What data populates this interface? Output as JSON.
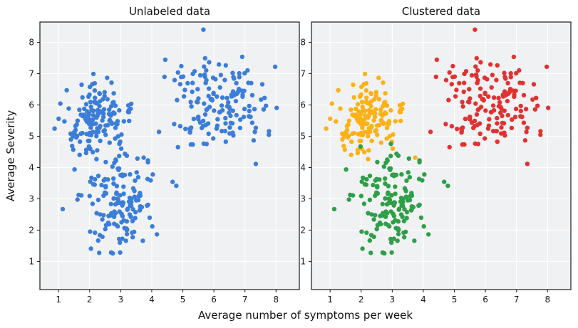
{
  "figure": {
    "background": "#ffffff",
    "plot_background": "#f0f1f2",
    "grid_color": "#ffffff",
    "spine_color": "#1a1a1a",
    "tick_color": "#1a1a1a"
  },
  "chart_data": {
    "type": "scatter",
    "xlabel": "Average number of symptoms per week",
    "ylabel": "Average Severity",
    "xlim": [
      0.4,
      8.75
    ],
    "ylim": [
      0.1,
      8.65
    ],
    "xticks": [
      1,
      2,
      3,
      4,
      5,
      6,
      7,
      8
    ],
    "yticks": [
      1,
      2,
      3,
      4,
      5,
      6,
      7,
      8
    ],
    "marker_radius": 3.2,
    "grid": true,
    "legend": "none",
    "panels": [
      {
        "id": "unlabeled",
        "title": "Unlabeled data",
        "color_mode": "single",
        "point_color": "#3b7dd8"
      },
      {
        "id": "clustered",
        "title": "Clustered data",
        "color_mode": "by-cluster"
      }
    ],
    "clusters": [
      {
        "label": "cluster-yellow-upper-left",
        "color": "#fbb117",
        "n": 150,
        "center": [
          2.15,
          5.5
        ],
        "std": [
          0.55,
          0.62
        ]
      },
      {
        "label": "cluster-green-lower-middle",
        "color": "#2f9e48",
        "n": 150,
        "center": [
          3.05,
          3.05
        ],
        "std": [
          0.62,
          0.78
        ]
      },
      {
        "label": "cluster-red-upper-right",
        "color": "#e03232",
        "n": 155,
        "center": [
          6.15,
          6.0
        ],
        "std": [
          0.78,
          0.75
        ]
      }
    ],
    "notes": "Both panels show the same ~455 points; left panel all blue, right panel colored by cluster assignment."
  }
}
